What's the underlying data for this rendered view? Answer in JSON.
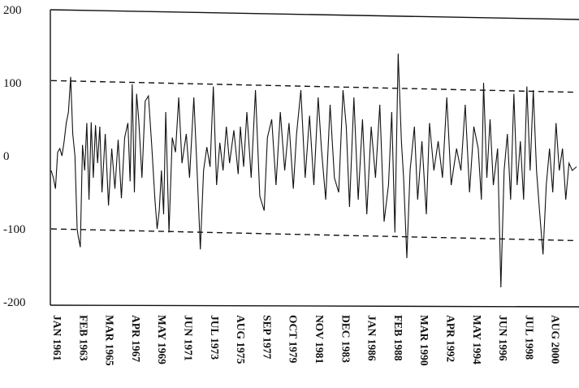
{
  "chart_data": {
    "type": "line",
    "title": "",
    "xlabel": "",
    "ylabel": "",
    "ylim": [
      -200,
      200
    ],
    "y_ticks": [
      "200",
      "100",
      "0",
      "-100",
      "-200"
    ],
    "y_tick_values": [
      200,
      100,
      0,
      -100,
      -200
    ],
    "x_tick_labels": [
      "JAN 1961",
      "FEB 1963",
      "MAR 1965",
      "APR 1967",
      "MAY 1969",
      "JUN 1971",
      "JUL 1973",
      "AUG 1975",
      "SEP 1977",
      "OCT 1979",
      "NOV 1981",
      "DEC 1983",
      "JAN 1986",
      "FEB 1988",
      "MAR 1990",
      "APR 1992",
      "MAY 1994",
      "JUN 1996",
      "JUL 1998",
      "AUG 2000"
    ],
    "x_tick_dates": [
      "1961-01",
      "1963-02",
      "1965-03",
      "1967-04",
      "1969-05",
      "1971-06",
      "1973-07",
      "1975-08",
      "1977-09",
      "1979-10",
      "1981-11",
      "1983-12",
      "1986-01",
      "1988-02",
      "1990-03",
      "1992-04",
      "1994-05",
      "1996-06",
      "1998-07",
      "2000-08"
    ],
    "grid": false,
    "legend": "none",
    "colors": {
      "series": "#111111",
      "bounds": "#111111",
      "axis": "#111111"
    },
    "reference_lines": [
      {
        "style": "dashed",
        "x": [
          "1961-01",
          "2001-07"
        ],
        "y": [
          103,
          87
        ]
      },
      {
        "style": "dashed",
        "x": [
          "1961-01",
          "2001-07"
        ],
        "y": [
          -100,
          -116
        ]
      }
    ],
    "series": [
      {
        "values": [
          [
            "1961-01",
            -20
          ],
          [
            "1961-03",
            -30
          ],
          [
            "1961-05",
            -45
          ],
          [
            "1961-07",
            5
          ],
          [
            "1961-09",
            10
          ],
          [
            "1961-11",
            0
          ],
          [
            "1962-01",
            20
          ],
          [
            "1962-03",
            45
          ],
          [
            "1962-05",
            60
          ],
          [
            "1962-07",
            108
          ],
          [
            "1962-09",
            30
          ],
          [
            "1962-11",
            0
          ],
          [
            "1963-01",
            -100
          ],
          [
            "1963-02",
            -110
          ],
          [
            "1963-04",
            -125
          ],
          [
            "1963-06",
            15
          ],
          [
            "1963-08",
            -20
          ],
          [
            "1963-10",
            45
          ],
          [
            "1963-12",
            -60
          ],
          [
            "1964-02",
            46
          ],
          [
            "1964-04",
            -30
          ],
          [
            "1964-06",
            42
          ],
          [
            "1964-08",
            -10
          ],
          [
            "1964-10",
            40
          ],
          [
            "1964-12",
            -50
          ],
          [
            "1965-03",
            30
          ],
          [
            "1965-06",
            -68
          ],
          [
            "1965-09",
            10
          ],
          [
            "1965-12",
            -45
          ],
          [
            "1966-03",
            22
          ],
          [
            "1966-06",
            -58
          ],
          [
            "1966-09",
            25
          ],
          [
            "1966-12",
            45
          ],
          [
            "1967-02",
            -35
          ],
          [
            "1967-04",
            98
          ],
          [
            "1967-06",
            -50
          ],
          [
            "1967-08",
            85
          ],
          [
            "1967-10",
            50
          ],
          [
            "1968-01",
            -30
          ],
          [
            "1968-04",
            75
          ],
          [
            "1968-07",
            82
          ],
          [
            "1968-10",
            15
          ],
          [
            "1969-01",
            -60
          ],
          [
            "1969-03",
            -100
          ],
          [
            "1969-05",
            -75
          ],
          [
            "1969-07",
            -20
          ],
          [
            "1969-09",
            -80
          ],
          [
            "1969-11",
            60
          ],
          [
            "1970-02",
            -105
          ],
          [
            "1970-05",
            25
          ],
          [
            "1970-08",
            5
          ],
          [
            "1970-11",
            80
          ],
          [
            "1971-02",
            -10
          ],
          [
            "1971-06",
            30
          ],
          [
            "1971-09",
            -30
          ],
          [
            "1972-01",
            80
          ],
          [
            "1972-04",
            -20
          ],
          [
            "1972-07",
            -128
          ],
          [
            "1972-10",
            -20
          ],
          [
            "1973-01",
            12
          ],
          [
            "1973-04",
            -15
          ],
          [
            "1973-07",
            95
          ],
          [
            "1973-10",
            -40
          ],
          [
            "1974-01",
            18
          ],
          [
            "1974-04",
            -20
          ],
          [
            "1974-07",
            40
          ],
          [
            "1974-10",
            -10
          ],
          [
            "1975-02",
            35
          ],
          [
            "1975-06",
            -25
          ],
          [
            "1975-08",
            40
          ],
          [
            "1975-11",
            -15
          ],
          [
            "1976-02",
            60
          ],
          [
            "1976-06",
            -30
          ],
          [
            "1976-10",
            90
          ],
          [
            "1977-02",
            -55
          ],
          [
            "1977-06",
            -75
          ],
          [
            "1977-09",
            25
          ],
          [
            "1978-01",
            50
          ],
          [
            "1978-05",
            -40
          ],
          [
            "1978-09",
            60
          ],
          [
            "1979-01",
            -20
          ],
          [
            "1979-05",
            45
          ],
          [
            "1979-09",
            -45
          ],
          [
            "1979-12",
            30
          ],
          [
            "1980-04",
            90
          ],
          [
            "1980-08",
            -30
          ],
          [
            "1980-12",
            55
          ],
          [
            "1981-04",
            -40
          ],
          [
            "1981-08",
            80
          ],
          [
            "1981-11",
            10
          ],
          [
            "1982-03",
            -60
          ],
          [
            "1982-07",
            70
          ],
          [
            "1982-11",
            -30
          ],
          [
            "1983-03",
            -50
          ],
          [
            "1983-07",
            90
          ],
          [
            "1983-10",
            40
          ],
          [
            "1984-01",
            -70
          ],
          [
            "1984-05",
            80
          ],
          [
            "1984-09",
            -60
          ],
          [
            "1985-01",
            50
          ],
          [
            "1985-05",
            -80
          ],
          [
            "1985-09",
            40
          ],
          [
            "1986-01",
            -30
          ],
          [
            "1986-05",
            70
          ],
          [
            "1986-09",
            -90
          ],
          [
            "1987-01",
            -40
          ],
          [
            "1987-04",
            60
          ],
          [
            "1987-07",
            -105
          ],
          [
            "1987-10",
            140
          ],
          [
            "1988-01",
            20
          ],
          [
            "1988-03",
            -30
          ],
          [
            "1988-06",
            -140
          ],
          [
            "1988-09",
            -20
          ],
          [
            "1989-01",
            40
          ],
          [
            "1989-04",
            -60
          ],
          [
            "1989-08",
            20
          ],
          [
            "1989-12",
            -80
          ],
          [
            "1990-03",
            45
          ],
          [
            "1990-07",
            -20
          ],
          [
            "1990-11",
            20
          ],
          [
            "1991-03",
            -30
          ],
          [
            "1991-07",
            80
          ],
          [
            "1991-11",
            -40
          ],
          [
            "1992-04",
            10
          ],
          [
            "1992-08",
            -20
          ],
          [
            "1992-12",
            70
          ],
          [
            "1993-04",
            -50
          ],
          [
            "1993-08",
            40
          ],
          [
            "1993-12",
            10
          ],
          [
            "1994-03",
            -60
          ],
          [
            "1994-05",
            100
          ],
          [
            "1994-08",
            -30
          ],
          [
            "1994-11",
            50
          ],
          [
            "1995-02",
            -40
          ],
          [
            "1995-06",
            10
          ],
          [
            "1995-09",
            -180
          ],
          [
            "1995-12",
            -20
          ],
          [
            "1996-03",
            30
          ],
          [
            "1996-06",
            -60
          ],
          [
            "1996-09",
            85
          ],
          [
            "1996-12",
            -40
          ],
          [
            "1997-03",
            20
          ],
          [
            "1997-06",
            -60
          ],
          [
            "1997-09",
            95
          ],
          [
            "1997-12",
            -20
          ],
          [
            "1998-03",
            90
          ],
          [
            "1998-06",
            -20
          ],
          [
            "1998-09",
            -80
          ],
          [
            "1998-12",
            -135
          ],
          [
            "1999-03",
            -40
          ],
          [
            "1999-06",
            10
          ],
          [
            "1999-09",
            -50
          ],
          [
            "1999-12",
            45
          ],
          [
            "2000-03",
            -20
          ],
          [
            "2000-06",
            10
          ],
          [
            "2000-09",
            -60
          ],
          [
            "2000-12",
            -10
          ],
          [
            "2001-03",
            -20
          ],
          [
            "2001-07",
            -15
          ]
        ]
      }
    ]
  }
}
